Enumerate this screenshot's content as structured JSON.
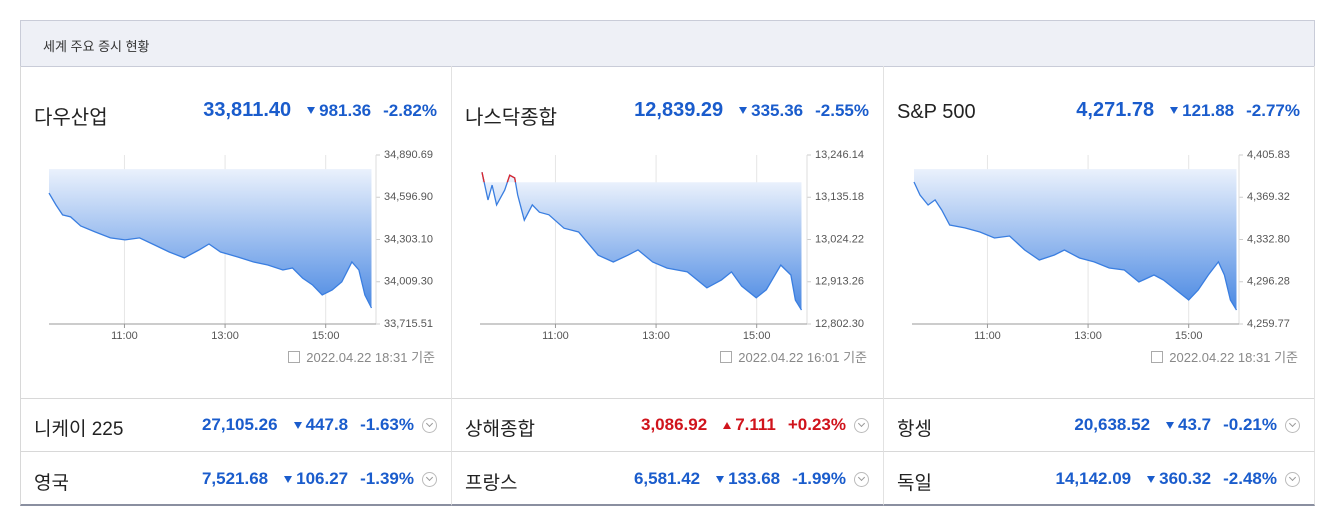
{
  "header": {
    "title": "세계 주요 증시 현황"
  },
  "main": [
    {
      "name": "다우산업",
      "price": "33,811.40",
      "change": "981.36",
      "rate": "-2.82%",
      "direction": "down",
      "updated": "2022.04.22 18:31 기준",
      "chart": {
        "type": "area",
        "color": "#3a7ee0",
        "up_color": "#e0262a",
        "xlim": [
          9.5,
          16
        ],
        "xticks": [
          {
            "value": 11,
            "label": "11:00"
          },
          {
            "value": 13,
            "label": "13:00"
          },
          {
            "value": 15,
            "label": "15:00"
          }
        ],
        "ylim": [
          33715.51,
          34890.69
        ],
        "yticks": [
          {
            "value": 34890.69,
            "label": "34,890.69"
          },
          {
            "value": 34596.9,
            "label": "34,596.90"
          },
          {
            "value": 34303.1,
            "label": "34,303.10"
          },
          {
            "value": 34009.3,
            "label": "34,009.30"
          },
          {
            "value": 33715.51,
            "label": "33,715.51"
          }
        ],
        "reference": 34792.76,
        "x": [
          9.5,
          9.64,
          9.77,
          9.93,
          10.13,
          10.42,
          10.72,
          11.01,
          11.3,
          11.6,
          11.89,
          12.19,
          12.48,
          12.68,
          12.91,
          13.26,
          13.56,
          13.85,
          14.15,
          14.34,
          14.54,
          14.74,
          14.93,
          15.13,
          15.32,
          15.52,
          15.66,
          15.78,
          15.91
        ],
        "values": [
          34626,
          34543,
          34474,
          34460,
          34397,
          34355,
          34314,
          34300,
          34314,
          34265,
          34216,
          34175,
          34230,
          34272,
          34216,
          34181,
          34147,
          34126,
          34091,
          34105,
          34035,
          33987,
          33917,
          33952,
          34008,
          34147,
          34091,
          33917,
          33827
        ]
      }
    },
    {
      "name": "나스닥종합",
      "price": "12,839.29",
      "change": "335.36",
      "rate": "-2.55%",
      "direction": "down",
      "updated": "2022.04.22 16:01 기준",
      "chart": {
        "type": "area",
        "color": "#3a7ee0",
        "up_color": "#e0262a",
        "xlim": [
          9.5,
          16
        ],
        "xticks": [
          {
            "value": 11,
            "label": "11:00"
          },
          {
            "value": 13,
            "label": "13:00"
          },
          {
            "value": 15,
            "label": "15:00"
          }
        ],
        "ylim": [
          12802.3,
          13246.14
        ],
        "yticks": [
          {
            "value": 13246.14,
            "label": "13,246.14"
          },
          {
            "value": 13135.18,
            "label": "13,135.18"
          },
          {
            "value": 13024.22,
            "label": "13,024.22"
          },
          {
            "value": 12913.26,
            "label": "12,913.26"
          },
          {
            "value": 12802.3,
            "label": "12,802.30"
          }
        ],
        "reference": 13174.65,
        "x": [
          9.54,
          9.66,
          9.74,
          9.83,
          9.99,
          10.09,
          10.19,
          10.25,
          10.38,
          10.54,
          10.68,
          10.87,
          11.17,
          11.46,
          11.85,
          12.15,
          12.44,
          12.64,
          12.93,
          13.22,
          13.62,
          14.01,
          14.3,
          14.5,
          14.7,
          14.99,
          15.19,
          15.48,
          15.68,
          15.77,
          15.89
        ],
        "values": [
          13201,
          13128,
          13167,
          13115,
          13154,
          13193,
          13186,
          13141,
          13075,
          13115,
          13096,
          13089,
          13054,
          13044,
          12983,
          12965,
          12983,
          12997,
          12965,
          12949,
          12939,
          12897,
          12918,
          12939,
          12902,
          12871,
          12892,
          12957,
          12931,
          12865,
          12839
        ]
      }
    },
    {
      "name": "S&P 500",
      "price": "4,271.78",
      "change": "121.88",
      "rate": "-2.77%",
      "direction": "down",
      "updated": "2022.04.22 18:31 기준",
      "chart": {
        "type": "area",
        "color": "#3a7ee0",
        "up_color": "#e0262a",
        "xlim": [
          9.5,
          16
        ],
        "xticks": [
          {
            "value": 11,
            "label": "11:00"
          },
          {
            "value": 13,
            "label": "13:00"
          },
          {
            "value": 15,
            "label": "15:00"
          }
        ],
        "ylim": [
          4259.77,
          4405.83
        ],
        "yticks": [
          {
            "value": 4405.83,
            "label": "4,405.83"
          },
          {
            "value": 4369.32,
            "label": "4,369.32"
          },
          {
            "value": 4332.8,
            "label": "4,332.80"
          },
          {
            "value": 4296.28,
            "label": "4,296.28"
          },
          {
            "value": 4259.77,
            "label": "4,259.77"
          }
        ],
        "reference": 4393.66,
        "x": [
          9.54,
          9.66,
          9.82,
          9.96,
          10.09,
          10.25,
          10.55,
          10.85,
          11.14,
          11.44,
          11.74,
          12.03,
          12.33,
          12.53,
          12.83,
          13.12,
          13.42,
          13.72,
          14.01,
          14.31,
          14.5,
          14.8,
          15.0,
          15.19,
          15.39,
          15.59,
          15.71,
          15.83,
          15.95
        ],
        "values": [
          4382.5,
          4371.3,
          4362.6,
          4367.0,
          4358.3,
          4345.3,
          4342.8,
          4339.3,
          4334.1,
          4335.8,
          4323.7,
          4315.1,
          4319.4,
          4323.7,
          4316.8,
          4313.4,
          4308.2,
          4306.4,
          4296.1,
          4302.1,
          4297.8,
          4287.4,
          4280.5,
          4289.2,
          4302.1,
          4313.4,
          4302.1,
          4280.5,
          4271.9
        ]
      }
    }
  ],
  "others": [
    {
      "name": "니케이 225",
      "price": "27,105.26",
      "change": "447.8",
      "rate": "-1.63%",
      "direction": "down"
    },
    {
      "name": "상해종합",
      "price": "3,086.92",
      "change": "7.111",
      "rate": "+0.23%",
      "direction": "up"
    },
    {
      "name": "항셍",
      "price": "20,638.52",
      "change": "43.7",
      "rate": "-0.21%",
      "direction": "down"
    },
    {
      "name": "영국",
      "price": "7,521.68",
      "change": "106.27",
      "rate": "-1.39%",
      "direction": "down"
    },
    {
      "name": "프랑스",
      "price": "6,581.42",
      "change": "133.68",
      "rate": "-1.99%",
      "direction": "down"
    },
    {
      "name": "독일",
      "price": "14,142.09",
      "change": "360.32",
      "rate": "-2.48%",
      "direction": "down"
    }
  ]
}
